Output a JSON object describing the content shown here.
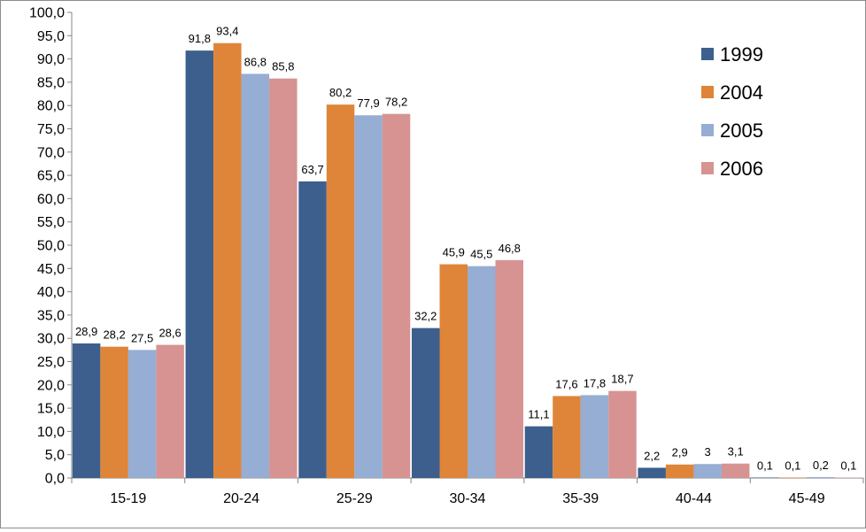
{
  "chart_data": {
    "type": "bar",
    "categories": [
      "15-19",
      "20-24",
      "25-29",
      "30-34",
      "35-39",
      "40-44",
      "45-49"
    ],
    "series": [
      {
        "name": "1999",
        "color": "#3C5F8E",
        "values": [
          28.9,
          91.8,
          63.7,
          32.2,
          11.1,
          2.2,
          0.1
        ],
        "labels": [
          "28,9",
          "91,8",
          "63,7",
          "32,2",
          "11,1",
          "2,2",
          "0,1"
        ]
      },
      {
        "name": "2004",
        "color": "#DE8539",
        "values": [
          28.2,
          93.4,
          80.2,
          45.9,
          17.6,
          2.9,
          0.1
        ],
        "labels": [
          "28,2",
          "93,4",
          "80,2",
          "45,9",
          "17,6",
          "2,9",
          "0,1"
        ]
      },
      {
        "name": "2005",
        "color": "#96ADD4",
        "values": [
          27.5,
          86.8,
          77.9,
          45.5,
          17.8,
          3,
          0.2
        ],
        "labels": [
          "27,5",
          "86,8",
          "77,9",
          "45,5",
          "17,8",
          "3",
          "0,2"
        ]
      },
      {
        "name": "2006",
        "color": "#D69392",
        "values": [
          28.6,
          85.8,
          78.2,
          46.8,
          18.7,
          3.1,
          0.1
        ],
        "labels": [
          "28,6",
          "85,8",
          "78,2",
          "46,8",
          "18,7",
          "3,1",
          "0,1"
        ]
      }
    ],
    "y_ticks": [
      "0,0",
      "5,0",
      "10,0",
      "15,0",
      "20,0",
      "25,0",
      "30,0",
      "35,0",
      "40,0",
      "45,0",
      "50,0",
      "55,0",
      "60,0",
      "65,0",
      "70,0",
      "75,0",
      "80,0",
      "85,0",
      "90,0",
      "95,0",
      "100,0"
    ],
    "ylim": [
      0,
      100
    ],
    "title": "",
    "xlabel": "",
    "ylabel": "",
    "grid": false,
    "legend_position": "right"
  }
}
